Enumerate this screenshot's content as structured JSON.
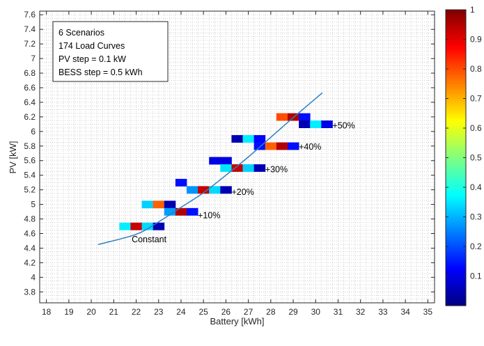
{
  "chart_data": {
    "type": "heatmap",
    "xlabel": "Battery [kWh]",
    "ylabel": "PV [kW]",
    "xlim": [
      17.7,
      35.3
    ],
    "ylim": [
      3.65,
      7.65
    ],
    "xticks": [
      18,
      19,
      20,
      21,
      22,
      23,
      24,
      25,
      26,
      27,
      28,
      29,
      30,
      31,
      32,
      33,
      34,
      35
    ],
    "yticks": [
      3.8,
      4,
      4.2,
      4.4,
      4.6,
      4.8,
      5,
      5.2,
      5.4,
      5.6,
      5.8,
      6,
      6.2,
      6.4,
      6.6,
      6.8,
      7,
      7.2,
      7.4,
      7.6
    ],
    "grid": "dotted minor and major",
    "colormap": "jet",
    "colorbar": {
      "min": 0,
      "max": 1,
      "ticks": [
        0.1,
        0.2,
        0.3,
        0.4,
        0.5,
        0.6,
        0.7,
        0.8,
        0.9,
        1
      ]
    },
    "cell_size": {
      "battery_kWh": 0.5,
      "pv_kW": 0.1
    },
    "cells": [
      {
        "x": 21.5,
        "y": 4.7,
        "v": 0.36
      },
      {
        "x": 22.0,
        "y": 4.7,
        "v": 0.93
      },
      {
        "x": 22.5,
        "y": 4.7,
        "v": 0.34
      },
      {
        "x": 23.0,
        "y": 4.7,
        "v": 0.05
      },
      {
        "x": 22.5,
        "y": 5.0,
        "v": 0.33
      },
      {
        "x": 23.0,
        "y": 5.0,
        "v": 0.78
      },
      {
        "x": 23.5,
        "y": 5.0,
        "v": 0.05
      },
      {
        "x": 23.5,
        "y": 4.9,
        "v": 0.28
      },
      {
        "x": 24.0,
        "y": 4.9,
        "v": 0.95
      },
      {
        "x": 24.5,
        "y": 4.9,
        "v": 0.14
      },
      {
        "x": 24.0,
        "y": 5.3,
        "v": 0.14
      },
      {
        "x": 24.5,
        "y": 5.2,
        "v": 0.27
      },
      {
        "x": 25.0,
        "y": 5.2,
        "v": 0.93
      },
      {
        "x": 25.5,
        "y": 5.2,
        "v": 0.34
      },
      {
        "x": 26.0,
        "y": 5.2,
        "v": 0.05
      },
      {
        "x": 25.5,
        "y": 5.6,
        "v": 0.1
      },
      {
        "x": 26.0,
        "y": 5.6,
        "v": 0.1
      },
      {
        "x": 26.0,
        "y": 5.5,
        "v": 0.35
      },
      {
        "x": 26.5,
        "y": 5.5,
        "v": 0.93
      },
      {
        "x": 27.0,
        "y": 5.5,
        "v": 0.33
      },
      {
        "x": 27.5,
        "y": 5.5,
        "v": 0.05
      },
      {
        "x": 26.5,
        "y": 5.9,
        "v": 0.05
      },
      {
        "x": 27.0,
        "y": 5.9,
        "v": 0.36
      },
      {
        "x": 27.5,
        "y": 5.9,
        "v": 0.13
      },
      {
        "x": 27.5,
        "y": 5.8,
        "v": 0.14
      },
      {
        "x": 28.0,
        "y": 5.8,
        "v": 0.78
      },
      {
        "x": 28.5,
        "y": 5.8,
        "v": 0.95
      },
      {
        "x": 29.0,
        "y": 5.8,
        "v": 0.14
      },
      {
        "x": 28.5,
        "y": 6.2,
        "v": 0.8
      },
      {
        "x": 29.0,
        "y": 6.2,
        "v": 0.95
      },
      {
        "x": 29.5,
        "y": 6.2,
        "v": 0.14
      },
      {
        "x": 29.5,
        "y": 6.1,
        "v": 0.05
      },
      {
        "x": 30.0,
        "y": 6.1,
        "v": 0.36
      },
      {
        "x": 30.5,
        "y": 6.1,
        "v": 0.1
      }
    ],
    "fit_curve": [
      [
        20.3,
        4.45
      ],
      [
        22.0,
        4.59
      ],
      [
        23.0,
        4.76
      ],
      [
        24.0,
        4.96
      ],
      [
        25.0,
        5.16
      ],
      [
        26.0,
        5.4
      ],
      [
        27.0,
        5.65
      ],
      [
        28.0,
        5.92
      ],
      [
        29.0,
        6.19
      ],
      [
        30.3,
        6.53
      ]
    ],
    "fit_color": "#2f7fbf",
    "annotations": [
      {
        "text": "Constant",
        "x": 21.8,
        "y": 4.52
      },
      {
        "text": "+10%",
        "x": 24.75,
        "y": 4.85
      },
      {
        "text": "+20%",
        "x": 26.25,
        "y": 5.17
      },
      {
        "text": "+30%",
        "x": 27.75,
        "y": 5.48
      },
      {
        "text": "+40%",
        "x": 29.25,
        "y": 5.79
      },
      {
        "text": "+50%",
        "x": 30.75,
        "y": 6.08
      }
    ],
    "info_box": [
      "6 Scenarios",
      "174 Load Curves",
      "PV step = 0.1 kW",
      "BESS step = 0.5 kWh"
    ]
  }
}
